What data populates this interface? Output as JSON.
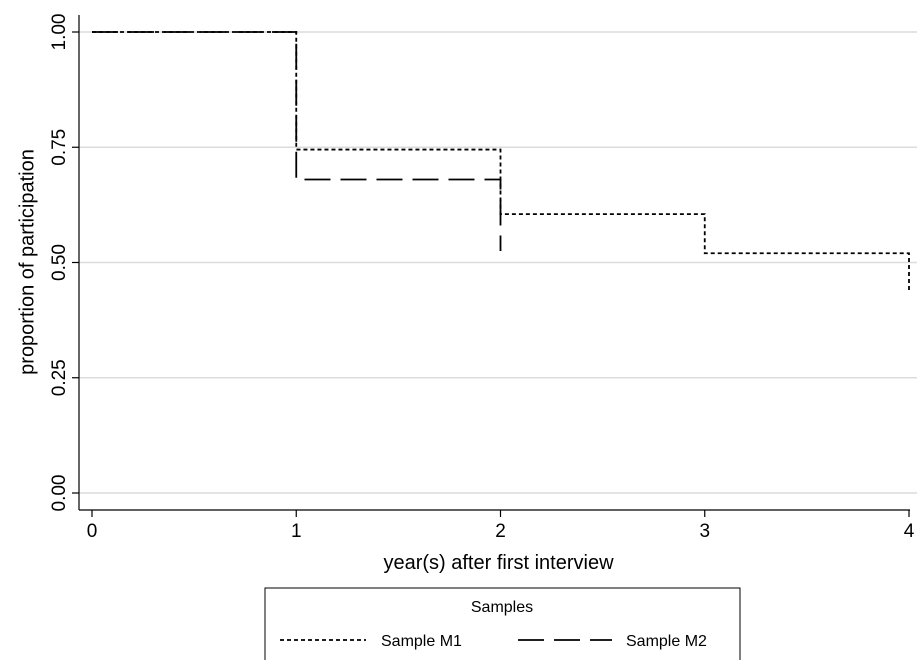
{
  "chart_data": {
    "type": "line",
    "title": "",
    "xlabel": "year(s) after first interview",
    "ylabel": "proportion of participation",
    "xlim": [
      0,
      4
    ],
    "ylim": [
      0,
      1
    ],
    "x_ticks": [
      0,
      1,
      2,
      3,
      4
    ],
    "x_tick_labels": [
      "0",
      "1",
      "2",
      "3",
      "4"
    ],
    "y_ticks": [
      0,
      0.25,
      0.5,
      0.75,
      1.0
    ],
    "y_tick_labels": [
      "0.00",
      "0.25",
      "0.50",
      "0.75",
      "1.00"
    ],
    "grid": "horizontal",
    "step": true,
    "legend": {
      "title": "Samples",
      "position": "bottom",
      "entries": [
        "Sample M1",
        "Sample M2"
      ]
    },
    "series": [
      {
        "name": "Sample M1",
        "style": "short-dash",
        "color": "#000000",
        "x": [
          0,
          1,
          2,
          3,
          4
        ],
        "y": [
          1.0,
          0.745,
          0.605,
          0.52,
          0.435
        ]
      },
      {
        "name": "Sample M2",
        "style": "long-dash",
        "color": "#000000",
        "x": [
          0,
          1,
          2
        ],
        "y": [
          1.0,
          0.68,
          0.525
        ]
      }
    ]
  },
  "colors": {
    "grid": "#dcdcdc",
    "axis": "#000000",
    "line": "#000000",
    "background": "#ffffff"
  }
}
